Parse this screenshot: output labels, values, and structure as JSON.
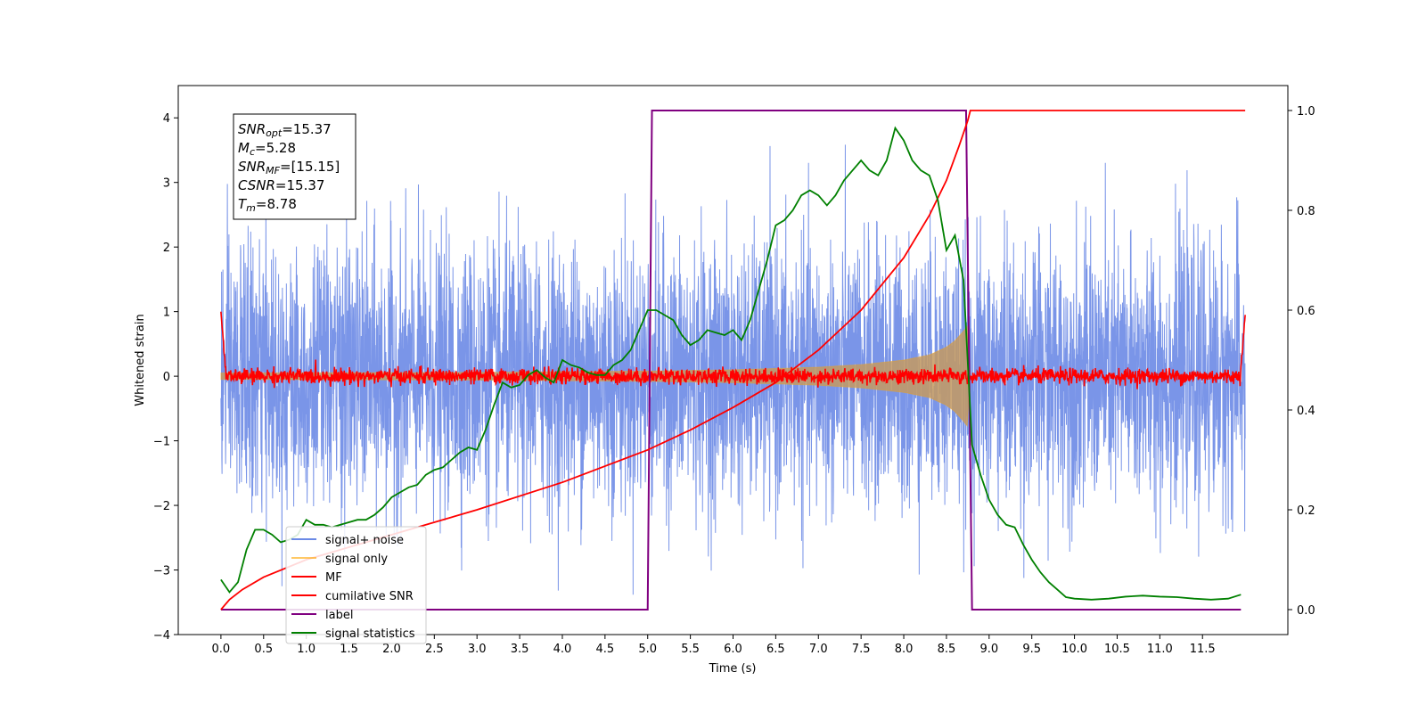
{
  "chart_data": {
    "type": "line",
    "xlabel": "Time (s)",
    "ylabel": "Whitened strain",
    "xlim": [
      -0.5,
      12.5
    ],
    "ylim": [
      -4.0,
      4.5
    ],
    "y2lim": [
      -0.05,
      1.05
    ],
    "x_ticks": [
      "0.0",
      "0.5",
      "1.0",
      "1.5",
      "2.0",
      "2.5",
      "3.0",
      "3.5",
      "4.0",
      "4.5",
      "5.0",
      "5.5",
      "6.0",
      "6.5",
      "7.0",
      "7.5",
      "8.0",
      "8.5",
      "9.0",
      "9.5",
      "10.0",
      "10.5",
      "11.0",
      "11.5"
    ],
    "y_ticks": [
      "4",
      "3",
      "2",
      "1",
      "0",
      "−1",
      "−2",
      "−3",
      "−4"
    ],
    "y2_ticks": [
      "1.0",
      "0.8",
      "0.6",
      "0.4",
      "0.2",
      "0.0"
    ],
    "grid": false,
    "legend_position": "lower-left",
    "stats_box": {
      "snr_opt": {
        "main": "SNR",
        "sub": "opt",
        "value": "=15.37"
      },
      "mc": {
        "main": "M",
        "sub": "c",
        "value": "=5.28"
      },
      "snr_mf": {
        "main": "SNR",
        "sub": "MF",
        "value": "=[15.15]"
      },
      "csnr": {
        "main": "CSNR",
        "sub": "",
        "value": "=15.37"
      },
      "tm": {
        "main": "T",
        "sub": "m",
        "value": "=8.78"
      }
    },
    "series": [
      {
        "name": "signal+ noise",
        "axis": "left",
        "color": "#6b8ae6",
        "noise_sigma": 1.0,
        "t_start": 0.0,
        "t_end": 12.0
      },
      {
        "name": "signal only",
        "axis": "left",
        "color": "#ffa500",
        "envelope": {
          "t": [
            0.0,
            3.0,
            5.0,
            6.0,
            7.0,
            7.5,
            8.0,
            8.3,
            8.5,
            8.6,
            8.7,
            8.76,
            8.78
          ],
          "amp": [
            0.05,
            0.06,
            0.08,
            0.1,
            0.14,
            0.18,
            0.25,
            0.33,
            0.45,
            0.55,
            0.7,
            0.8,
            0.0
          ]
        }
      },
      {
        "name": "MF",
        "axis": "left",
        "color": "#ff0000",
        "noise_sigma": 0.06,
        "edge_values": {
          "start": 1.0,
          "end": 0.95
        }
      },
      {
        "name": "cumilative SNR",
        "axis": "right",
        "color": "#ff0000",
        "x": [
          0.0,
          0.1,
          0.25,
          0.5,
          1.0,
          2.0,
          3.0,
          4.0,
          5.0,
          5.5,
          6.0,
          6.5,
          7.0,
          7.5,
          8.0,
          8.3,
          8.5,
          8.65,
          8.75,
          8.78,
          8.85,
          12.0
        ],
        "y": [
          0.0,
          0.02,
          0.04,
          0.065,
          0.1,
          0.15,
          0.2,
          0.255,
          0.32,
          0.36,
          0.405,
          0.455,
          0.52,
          0.6,
          0.705,
          0.79,
          0.86,
          0.93,
          0.98,
          1.0,
          1.0,
          1.0
        ]
      },
      {
        "name": "label",
        "axis": "right",
        "color": "#800080",
        "x": [
          0.0,
          5.0,
          5.05,
          8.73,
          8.8,
          11.95
        ],
        "y": [
          0.0,
          0.0,
          1.0,
          1.0,
          0.0,
          0.0
        ]
      },
      {
        "name": "signal statistics",
        "axis": "right",
        "color": "#008000",
        "x": [
          0.0,
          0.1,
          0.2,
          0.3,
          0.4,
          0.5,
          0.6,
          0.7,
          0.8,
          0.9,
          1.0,
          1.1,
          1.2,
          1.3,
          1.4,
          1.5,
          1.6,
          1.7,
          1.8,
          1.9,
          2.0,
          2.1,
          2.2,
          2.3,
          2.4,
          2.5,
          2.6,
          2.7,
          2.8,
          2.9,
          3.0,
          3.1,
          3.2,
          3.3,
          3.4,
          3.5,
          3.6,
          3.7,
          3.8,
          3.9,
          4.0,
          4.1,
          4.2,
          4.3,
          4.4,
          4.5,
          4.6,
          4.7,
          4.8,
          4.9,
          5.0,
          5.1,
          5.2,
          5.3,
          5.4,
          5.5,
          5.6,
          5.7,
          5.8,
          5.9,
          6.0,
          6.1,
          6.2,
          6.3,
          6.4,
          6.5,
          6.6,
          6.7,
          6.8,
          6.9,
          7.0,
          7.1,
          7.2,
          7.3,
          7.4,
          7.5,
          7.6,
          7.7,
          7.8,
          7.9,
          8.0,
          8.1,
          8.2,
          8.3,
          8.4,
          8.5,
          8.6,
          8.7,
          8.8,
          8.9,
          9.0,
          9.1,
          9.2,
          9.3,
          9.4,
          9.5,
          9.6,
          9.7,
          9.8,
          9.9,
          10.0,
          10.2,
          10.4,
          10.6,
          10.8,
          11.0,
          11.2,
          11.4,
          11.6,
          11.8,
          11.95
        ],
        "y": [
          0.06,
          0.035,
          0.055,
          0.12,
          0.16,
          0.16,
          0.15,
          0.135,
          0.14,
          0.15,
          0.18,
          0.17,
          0.17,
          0.165,
          0.17,
          0.175,
          0.18,
          0.18,
          0.19,
          0.205,
          0.225,
          0.235,
          0.245,
          0.25,
          0.27,
          0.28,
          0.285,
          0.3,
          0.315,
          0.325,
          0.32,
          0.36,
          0.41,
          0.455,
          0.445,
          0.45,
          0.47,
          0.48,
          0.465,
          0.455,
          0.5,
          0.49,
          0.485,
          0.475,
          0.47,
          0.47,
          0.49,
          0.5,
          0.52,
          0.56,
          0.6,
          0.6,
          0.59,
          0.58,
          0.55,
          0.53,
          0.54,
          0.56,
          0.555,
          0.55,
          0.56,
          0.54,
          0.58,
          0.64,
          0.7,
          0.77,
          0.78,
          0.8,
          0.83,
          0.84,
          0.83,
          0.81,
          0.83,
          0.86,
          0.88,
          0.9,
          0.88,
          0.87,
          0.9,
          0.965,
          0.94,
          0.9,
          0.88,
          0.87,
          0.82,
          0.72,
          0.75,
          0.66,
          0.33,
          0.27,
          0.22,
          0.19,
          0.17,
          0.165,
          0.13,
          0.1,
          0.075,
          0.055,
          0.04,
          0.025,
          0.022,
          0.02,
          0.022,
          0.026,
          0.028,
          0.026,
          0.025,
          0.022,
          0.02,
          0.022,
          0.03
        ]
      }
    ]
  }
}
